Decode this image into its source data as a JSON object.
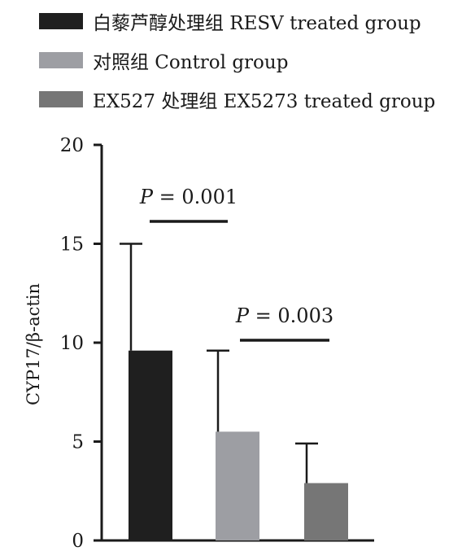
{
  "chart_data": {
    "type": "bar",
    "categories": [
      "白藜芦醇处理组 RESV treated group",
      "对照组 Control group",
      "EX527 处理组 EX5273 treated group"
    ],
    "series": [
      {
        "values": [
          9.6,
          5.5,
          2.9
        ],
        "error_upper": [
          15.0,
          9.6,
          4.9
        ]
      }
    ],
    "colors": [
      "#1f1f1f",
      "#9d9ea3",
      "#767676"
    ],
    "ylabel": "CYP17/β-actin",
    "ylim": [
      0,
      20
    ],
    "yticks": [
      "0",
      "5",
      "10",
      "15",
      "20"
    ],
    "annotations": [
      {
        "p_symbol": "P",
        "text": " = 0.001",
        "bars": [
          0,
          1
        ]
      },
      {
        "p_symbol": "P",
        "text": " = 0.003",
        "bars": [
          1,
          2
        ]
      }
    ],
    "legend": {
      "position": "top-left",
      "items": [
        "白藜芦醇处理组 RESV treated group",
        "对照组 Control group",
        "EX527 处理组 EX5273 treated group"
      ]
    },
    "grid": false
  }
}
